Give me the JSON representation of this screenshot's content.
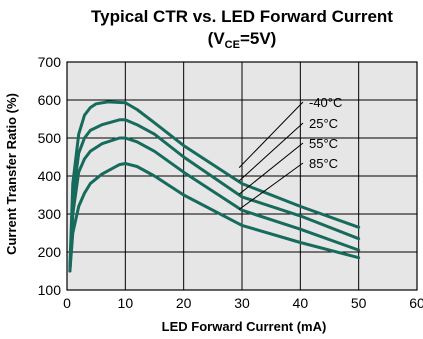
{
  "chart_data": {
    "type": "line",
    "title_main": "Typical CTR vs. LED Forward Current",
    "title_paren_open": "(V",
    "title_subscript": "CE",
    "title_paren_close": "=5V)",
    "xlabel": "LED Forward Current (mA)",
    "ylabel": "Current Transfer Ratio (%)",
    "xlim": [
      0,
      60
    ],
    "ylim": [
      100,
      700
    ],
    "x_ticks": [
      0,
      10,
      20,
      30,
      40,
      50,
      60
    ],
    "y_ticks": [
      100,
      200,
      300,
      400,
      500,
      600,
      700
    ],
    "grid": true,
    "plot_background": "#e6e6e6",
    "line_color": "#166b5c",
    "series": [
      {
        "name": "-40°C",
        "points": [
          [
            0.5,
            160
          ],
          [
            1,
            380
          ],
          [
            2,
            510
          ],
          [
            3,
            560
          ],
          [
            4,
            580
          ],
          [
            5,
            590
          ],
          [
            7,
            595
          ],
          [
            10,
            593
          ],
          [
            12,
            575
          ],
          [
            15,
            540
          ],
          [
            20,
            480
          ],
          [
            30,
            380
          ],
          [
            40,
            320
          ],
          [
            50,
            265
          ]
        ]
      },
      {
        "name": "25°C",
        "points": [
          [
            0.5,
            150
          ],
          [
            1,
            340
          ],
          [
            2,
            460
          ],
          [
            3,
            500
          ],
          [
            4,
            520
          ],
          [
            6,
            535
          ],
          [
            9,
            548
          ],
          [
            10,
            548
          ],
          [
            12,
            535
          ],
          [
            15,
            510
          ],
          [
            20,
            450
          ],
          [
            30,
            345
          ],
          [
            40,
            295
          ],
          [
            50,
            235
          ]
        ]
      },
      {
        "name": "55°C",
        "points": [
          [
            0.5,
            150
          ],
          [
            1,
            300
          ],
          [
            2,
            410
          ],
          [
            3,
            445
          ],
          [
            4,
            465
          ],
          [
            6,
            485
          ],
          [
            9,
            500
          ],
          [
            10,
            500
          ],
          [
            12,
            490
          ],
          [
            15,
            465
          ],
          [
            20,
            410
          ],
          [
            30,
            310
          ],
          [
            40,
            260
          ],
          [
            50,
            205
          ]
        ]
      },
      {
        "name": "85°C",
        "points": [
          [
            0.5,
            150
          ],
          [
            1,
            250
          ],
          [
            2,
            320
          ],
          [
            3,
            355
          ],
          [
            4,
            380
          ],
          [
            6,
            405
          ],
          [
            9,
            430
          ],
          [
            10,
            433
          ],
          [
            12,
            425
          ],
          [
            15,
            400
          ],
          [
            20,
            350
          ],
          [
            30,
            270
          ],
          [
            40,
            225
          ],
          [
            50,
            185
          ]
        ]
      }
    ]
  }
}
